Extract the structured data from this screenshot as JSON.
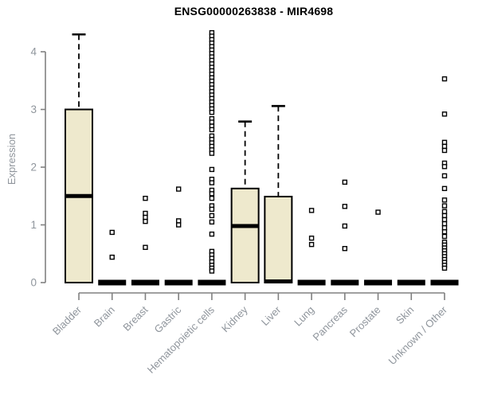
{
  "chart_data": {
    "type": "boxplot",
    "title": "ENSG00000263838 - MIR4698",
    "ylabel": "Expression",
    "xlabel": "",
    "ylim": [
      0,
      4.45
    ],
    "yticks": [
      0,
      1,
      2,
      3,
      4
    ],
    "grid": false,
    "legend": "none",
    "x_tick_rotation": 45,
    "categories": [
      "Bladder",
      "Brain",
      "Breast",
      "Gastric",
      "Hematopoietic cells",
      "Kidney",
      "Liver",
      "Lung",
      "Pancreas",
      "Prostate",
      "Skin",
      "Unknown / Other"
    ],
    "boxes": [
      {
        "category": "Bladder",
        "q1": 0,
        "median": 1.5,
        "q3": 3.0,
        "whisker_low": 0,
        "whisker_high": 4.3,
        "outliers": []
      },
      {
        "category": "Brain",
        "q1": 0,
        "median": 0,
        "q3": 0,
        "whisker_low": 0,
        "whisker_high": 0,
        "outliers": [
          0.87,
          0.44
        ]
      },
      {
        "category": "Breast",
        "q1": 0,
        "median": 0,
        "q3": 0,
        "whisker_low": 0,
        "whisker_high": 0,
        "outliers": [
          1.46,
          1.2,
          1.13,
          1.06,
          0.61
        ]
      },
      {
        "category": "Gastric",
        "q1": 0,
        "median": 0,
        "q3": 0,
        "whisker_low": 0,
        "whisker_high": 0,
        "outliers": [
          1.62,
          1.07,
          1.0
        ]
      },
      {
        "category": "Hematopoietic cells",
        "q1": 0,
        "median": 0,
        "q3": 0,
        "whisker_low": 0,
        "whisker_high": 0,
        "outliers": [
          4.33,
          4.27,
          4.21,
          4.15,
          4.09,
          4.03,
          3.97,
          3.91,
          3.85,
          3.79,
          3.73,
          3.67,
          3.61,
          3.55,
          3.49,
          3.43,
          3.37,
          3.31,
          3.25,
          3.19,
          3.13,
          3.07,
          3.01,
          2.95,
          2.84,
          2.78,
          2.71,
          2.65,
          2.54,
          2.48,
          2.42,
          2.36,
          2.3,
          2.24,
          1.96,
          1.79,
          1.73,
          1.6,
          1.54,
          1.46,
          1.33,
          1.27,
          1.16,
          1.05,
          0.84,
          0.54,
          0.48,
          0.42,
          0.36,
          0.3,
          0.25,
          0.2
        ]
      },
      {
        "category": "Kidney",
        "q1": 0,
        "median": 0.98,
        "q3": 1.63,
        "whisker_low": 0,
        "whisker_high": 2.79,
        "outliers": []
      },
      {
        "category": "Liver",
        "q1": 0,
        "median": 0.02,
        "q3": 1.49,
        "whisker_low": 0,
        "whisker_high": 3.06,
        "outliers": []
      },
      {
        "category": "Lung",
        "q1": 0,
        "median": 0,
        "q3": 0,
        "whisker_low": 0,
        "whisker_high": 0,
        "outliers": [
          1.25,
          0.77,
          0.66
        ]
      },
      {
        "category": "Pancreas",
        "q1": 0,
        "median": 0,
        "q3": 0,
        "whisker_low": 0,
        "whisker_high": 0,
        "outliers": [
          1.74,
          1.32,
          0.98,
          0.59
        ]
      },
      {
        "category": "Prostate",
        "q1": 0,
        "median": 0,
        "q3": 0,
        "whisker_low": 0,
        "whisker_high": 0,
        "outliers": [
          1.22
        ]
      },
      {
        "category": "Skin",
        "q1": 0,
        "median": 0,
        "q3": 0,
        "whisker_low": 0,
        "whisker_high": 0,
        "outliers": []
      },
      {
        "category": "Unknown / Other",
        "q1": 0,
        "median": 0,
        "q3": 0,
        "whisker_low": 0,
        "whisker_high": 0,
        "outliers": [
          3.53,
          2.92,
          2.43,
          2.36,
          2.29,
          2.07,
          2.01,
          1.85,
          1.63,
          1.43,
          1.33,
          1.23,
          1.16,
          1.09,
          1.02,
          0.95,
          0.88,
          0.8,
          0.7,
          0.65,
          0.6,
          0.55,
          0.5,
          0.45,
          0.4,
          0.35,
          0.3,
          0.25
        ]
      }
    ],
    "colors": {
      "box_fill": "#EEE9CD",
      "box_stroke": "#000000",
      "median": "#000000",
      "axis": "#808080",
      "tick_label": "#8f959c",
      "outlier_fill": "#ffffff",
      "outlier_stroke": "#000000",
      "title": "#000000",
      "background": "#ffffff"
    }
  }
}
